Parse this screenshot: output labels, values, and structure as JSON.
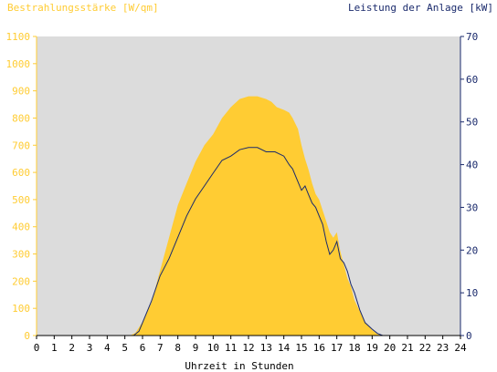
{
  "chart_data": {
    "type": "area",
    "left_axis_title": "Bestrahlungsstärke [W/qm]",
    "right_axis_title": "Leistung der Anlage [kW]",
    "xlabel": "Uhrzeit in Stunden",
    "xlim": [
      0,
      24
    ],
    "x_ticks": [
      "0",
      "1",
      "2",
      "3",
      "4",
      "5",
      "6",
      "7",
      "8",
      "9",
      "10",
      "11",
      "12",
      "13",
      "14",
      "15",
      "16",
      "17",
      "18",
      "19",
      "20",
      "21",
      "22",
      "23",
      "24"
    ],
    "y_left_lim": [
      0,
      1100
    ],
    "y_left_ticks": [
      "0",
      "100",
      "200",
      "300",
      "400",
      "500",
      "600",
      "700",
      "800",
      "900",
      "1000",
      "1100"
    ],
    "y_right_lim": [
      0,
      70
    ],
    "y_right_ticks": [
      "0",
      "10",
      "20",
      "30",
      "40",
      "50",
      "60",
      "70"
    ],
    "grid": false,
    "colors": {
      "irradiance": "#ffcc33",
      "power": "#1a2a6c",
      "plot_background": "#dcdcdc",
      "left_axis": "#ffcc33",
      "right_axis": "#1a2a6c"
    },
    "series": [
      {
        "axis": "left",
        "x": [
          0,
          5.3,
          5.6,
          6.0,
          6.5,
          7.0,
          7.5,
          8.0,
          8.5,
          9.0,
          9.5,
          10.0,
          10.5,
          11.0,
          11.5,
          12.0,
          12.5,
          13.0,
          13.3,
          13.6,
          14.0,
          14.3,
          14.5,
          14.8,
          15.0,
          15.2,
          15.4,
          15.6,
          15.8,
          16.0,
          16.2,
          16.4,
          16.6,
          16.8,
          17.0,
          17.2,
          17.4,
          17.6,
          17.8,
          18.0,
          18.3,
          18.6,
          19.0,
          19.3,
          19.6,
          20.0,
          24
        ],
        "values": [
          0,
          0,
          10,
          50,
          120,
          240,
          360,
          480,
          560,
          640,
          700,
          740,
          800,
          840,
          870,
          880,
          880,
          870,
          860,
          840,
          830,
          820,
          800,
          760,
          700,
          650,
          610,
          560,
          520,
          500,
          460,
          420,
          380,
          360,
          380,
          310,
          260,
          210,
          180,
          130,
          90,
          50,
          20,
          5,
          0,
          0,
          0
        ]
      },
      {
        "axis": "right",
        "x": [
          0,
          5.5,
          5.8,
          6.0,
          6.5,
          7.0,
          7.5,
          8.0,
          8.5,
          9.0,
          9.5,
          10.0,
          10.5,
          11.0,
          11.5,
          12.0,
          12.5,
          13.0,
          13.5,
          14.0,
          14.3,
          14.5,
          14.8,
          15.0,
          15.2,
          15.4,
          15.6,
          15.8,
          16.0,
          16.2,
          16.4,
          16.6,
          16.8,
          17.0,
          17.2,
          17.4,
          17.6,
          17.8,
          18.0,
          18.3,
          18.6,
          19.0,
          19.3,
          19.6,
          20.0,
          24
        ],
        "values": [
          0,
          0,
          1,
          3,
          8,
          14,
          18,
          23,
          28,
          32,
          35,
          38,
          41,
          42,
          43.5,
          44,
          44,
          43,
          43,
          42,
          40,
          39,
          36,
          34,
          35,
          33,
          31,
          30,
          28,
          26,
          22,
          19,
          20,
          22,
          18,
          17,
          15,
          12,
          10,
          6,
          3,
          1.5,
          0.5,
          0,
          0,
          0
        ]
      }
    ]
  }
}
